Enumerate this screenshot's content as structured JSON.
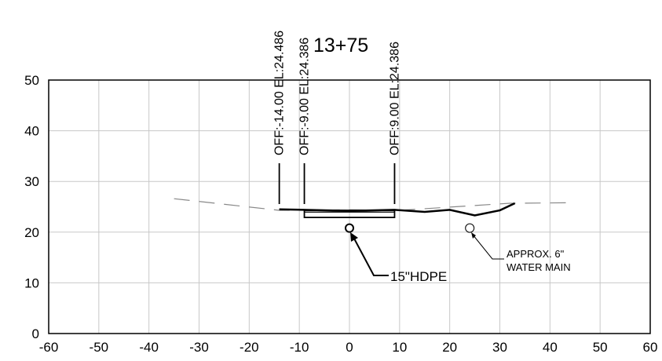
{
  "station": "13+75",
  "x_ticks": [
    "-60",
    "-50",
    "-40",
    "-30",
    "-20",
    "-10",
    "0",
    "10",
    "20",
    "30",
    "40",
    "50",
    "60"
  ],
  "y_ticks": [
    "0",
    "10",
    "20",
    "30",
    "40",
    "50"
  ],
  "offset_labels": [
    {
      "offset": -14,
      "text": "OFF:-14.00 EL:24.486"
    },
    {
      "offset": -9,
      "text": "OFF:-9.00 EL:24.386"
    },
    {
      "offset": 9,
      "text": "OFF:9.00 EL:24.386"
    }
  ],
  "existing_ground": [
    [
      -35,
      26.6
    ],
    [
      -14,
      24.3
    ],
    [
      0,
      24.4
    ],
    [
      10,
      24.3
    ],
    [
      32,
      25.7
    ],
    [
      45,
      25.8
    ]
  ],
  "proposed_profile": [
    [
      -14,
      24.49
    ],
    [
      -9,
      24.4
    ],
    [
      0,
      24.2
    ],
    [
      9,
      24.39
    ],
    [
      15,
      24.0
    ],
    [
      20,
      24.4
    ],
    [
      25,
      23.3
    ],
    [
      30,
      24.3
    ],
    [
      33,
      25.7
    ]
  ],
  "box": {
    "x1": -9,
    "x2": 9,
    "top": 24.3,
    "bottom": 22.9
  },
  "pipe": {
    "label": "15\"HDPE",
    "x": 0,
    "y": 20.8
  },
  "water_main": {
    "label_line1": "APPROX. 6\"",
    "label_line2": "WATER MAIN",
    "x": 24,
    "y": 20.8
  }
}
